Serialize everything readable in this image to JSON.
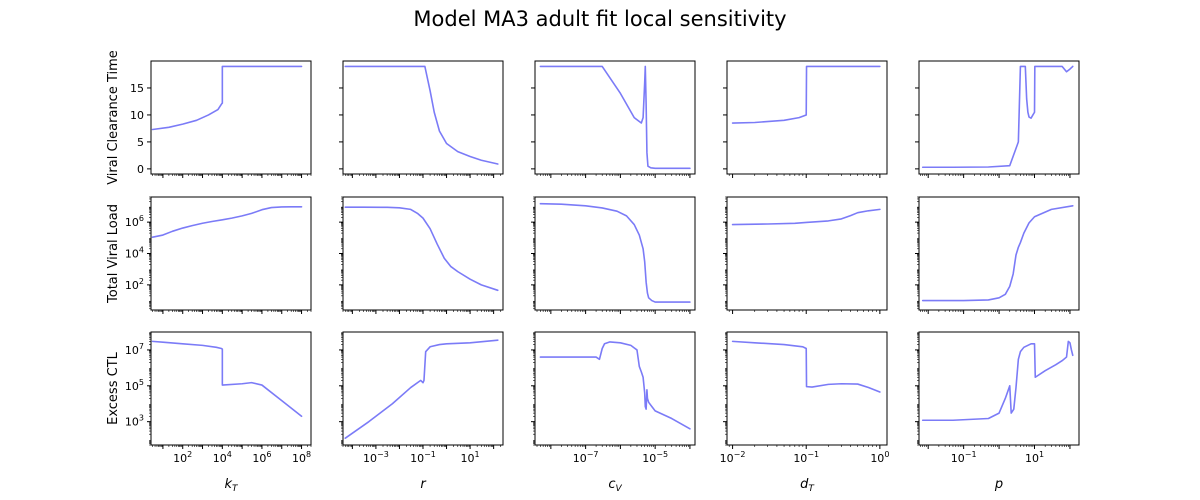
{
  "chart_data": {
    "type": "line",
    "title": "Model MA3 adult fit local sensitivity",
    "line_color": "#7b7bf7",
    "grid": false,
    "row_labels": [
      "Viral Clearance Time",
      "Total Viral Load",
      "Excess CTL"
    ],
    "columns": [
      {
        "xlabel_base": "k",
        "xlabel_sub": "T",
        "xscale": "log",
        "xlim": [
          2.5,
          300000000
        ],
        "xticks": [
          {
            "value": 100,
            "base": "10",
            "exp": "2"
          },
          {
            "value": 10000,
            "base": "10",
            "exp": "4"
          },
          {
            "value": 1000000,
            "base": "10",
            "exp": "6"
          },
          {
            "value": 100000000,
            "base": "10",
            "exp": "8"
          }
        ]
      },
      {
        "xlabel_base": "r",
        "xlabel_sub": "",
        "xscale": "log",
        "xlim": [
          4e-05,
          250
        ],
        "xticks": [
          {
            "value": 0.001,
            "base": "10",
            "exp": "−3"
          },
          {
            "value": 0.1,
            "base": "10",
            "exp": "−1"
          },
          {
            "value": 10,
            "base": "10",
            "exp": "1"
          }
        ]
      },
      {
        "xlabel_base": "c",
        "xlabel_sub": "V",
        "xscale": "log",
        "xlim": [
          3.5e-09,
          0.00014
        ],
        "xticks": [
          {
            "value": 1e-07,
            "base": "10",
            "exp": "−7"
          },
          {
            "value": 1e-05,
            "base": "10",
            "exp": "−5"
          }
        ]
      },
      {
        "xlabel_base": "d",
        "xlabel_sub": "T",
        "xscale": "log",
        "xlim": [
          0.0084,
          1.25
        ],
        "xticks": [
          {
            "value": 0.01,
            "base": "10",
            "exp": "−2"
          },
          {
            "value": 0.1,
            "base": "10",
            "exp": "−1"
          },
          {
            "value": 1,
            "base": "10",
            "exp": "0"
          }
        ]
      },
      {
        "xlabel_base": "p",
        "xlabel_sub": "",
        "xscale": "log",
        "xlim": [
          0.0055,
          180
        ],
        "xticks": [
          {
            "value": 0.1,
            "base": "10",
            "exp": "−1"
          },
          {
            "value": 10,
            "base": "10",
            "exp": "1"
          }
        ]
      }
    ],
    "rows": [
      {
        "ylabel": "Viral Clearance Time",
        "yscale": "linear",
        "ylim": [
          -0.95,
          20.0
        ],
        "yticks": [
          {
            "value": 0,
            "label": "0"
          },
          {
            "value": 5,
            "label": "5"
          },
          {
            "value": 10,
            "label": "10"
          },
          {
            "value": 15,
            "label": "15"
          }
        ]
      },
      {
        "ylabel": "Total Viral Load",
        "yscale": "log",
        "ylim": [
          2.5,
          40000000
        ],
        "yticks": [
          {
            "value": 100,
            "base": "10",
            "exp": "2"
          },
          {
            "value": 10000,
            "base": "10",
            "exp": "4"
          },
          {
            "value": 1000000,
            "base": "10",
            "exp": "6"
          }
        ]
      },
      {
        "ylabel": "Excess CTL",
        "yscale": "log",
        "ylim": [
          50,
          100000000
        ],
        "yticks": [
          {
            "value": 1000,
            "base": "10",
            "exp": "3"
          },
          {
            "value": 100000,
            "base": "10",
            "exp": "5"
          },
          {
            "value": 10000000,
            "base": "10",
            "exp": "7"
          }
        ]
      }
    ],
    "panels": [
      [
        {
          "x": [
            3,
            20,
            100,
            500,
            2000,
            6000,
            9000,
            10000,
            10000,
            100000,
            1000000,
            10000000,
            100000000
          ],
          "y": [
            7.3,
            7.7,
            8.3,
            9.0,
            10.0,
            11.0,
            12.0,
            12.2,
            19.0,
            19.0,
            19.0,
            19.0,
            19.0
          ]
        },
        {
          "x": [
            5e-05,
            0.001,
            0.01,
            0.1,
            0.12,
            0.2,
            0.3,
            0.5,
            1,
            3,
            10,
            30,
            150
          ],
          "y": [
            19.0,
            19.0,
            19.0,
            19.0,
            19.0,
            14.5,
            10.5,
            7.0,
            4.7,
            3.2,
            2.3,
            1.6,
            0.9
          ]
        },
        {
          "x": [
            5e-09,
            1e-07,
            3e-07,
            1e-06,
            2.5e-06,
            4e-06,
            4.5e-06,
            5e-06,
            5.2e-06,
            5.5e-06,
            5.8e-06,
            6.2e-06,
            7.5e-06,
            1e-05,
            3e-05,
            0.0001
          ],
          "y": [
            19.0,
            19.0,
            19.0,
            14.0,
            9.5,
            8.5,
            9.5,
            16.0,
            19.0,
            12.0,
            3.0,
            0.5,
            0.2,
            0.1,
            0.1,
            0.1
          ]
        },
        {
          "x": [
            0.01,
            0.02,
            0.05,
            0.08,
            0.1,
            0.101,
            0.2,
            0.5,
            1
          ],
          "y": [
            8.5,
            8.6,
            9.0,
            9.5,
            10.0,
            19.0,
            19.0,
            19.0,
            19.0
          ]
        },
        {
          "x": [
            0.007,
            0.05,
            0.5,
            2,
            3.5,
            4,
            4.2,
            5.5,
            6,
            6.5,
            7,
            8,
            9,
            10,
            10.2,
            30,
            60,
            80,
            100,
            120
          ],
          "y": [
            0.3,
            0.3,
            0.35,
            0.6,
            5.0,
            19.0,
            19.0,
            19.0,
            13.0,
            10.5,
            9.6,
            9.4,
            10.0,
            10.5,
            19.0,
            19.0,
            19.0,
            18.0,
            18.5,
            19.0
          ]
        }
      ],
      [
        {
          "x": [
            3,
            10,
            30,
            100,
            300,
            1000,
            3000,
            10000,
            30000,
            100000,
            300000,
            1000000,
            3000000,
            10000000,
            30000000,
            100000000
          ],
          "y": [
            110000,
            150000,
            260000,
            420000,
            600000,
            850000,
            1100000,
            1400000,
            1800000,
            2500000,
            3600000,
            6200000,
            8500000,
            9300000,
            9500000,
            9500000
          ]
        },
        {
          "x": [
            5e-05,
            0.0003,
            0.003,
            0.01,
            0.03,
            0.06,
            0.1,
            0.2,
            0.4,
            0.8,
            1.5,
            3,
            10,
            30,
            150
          ],
          "y": [
            9000000,
            9000000,
            8800000,
            8200000,
            6500000,
            3500000,
            1800000,
            380000,
            40000,
            5000,
            1500,
            700,
            230,
            100,
            45
          ]
        },
        {
          "x": [
            5e-09,
            2e-08,
            1e-07,
            3e-07,
            8e-07,
            1.5e-06,
            2.5e-06,
            3.5e-06,
            4.5e-06,
            5e-06,
            5.5e-06,
            6e-06,
            6.5e-06,
            8e-06,
            1e-05,
            3e-05,
            0.0001
          ],
          "y": [
            15000000,
            14000000,
            11000000,
            8000000,
            5000000,
            2500000,
            700000,
            150000,
            20000,
            3000,
            150,
            30,
            15,
            10,
            8,
            8,
            8
          ]
        },
        {
          "x": [
            0.01,
            0.03,
            0.07,
            0.1,
            0.2,
            0.3,
            0.4,
            0.5,
            0.7,
            1
          ],
          "y": [
            700000,
            760000,
            840000,
            950000,
            1200000,
            1600000,
            2600000,
            4000000,
            5300000,
            6500000
          ]
        },
        {
          "x": [
            0.007,
            0.1,
            0.5,
            1,
            1.5,
            2,
            2.5,
            3,
            3.5,
            4,
            5,
            7,
            10,
            30,
            120
          ],
          "y": [
            10,
            10,
            11,
            15,
            25,
            80,
            500,
            8000,
            25000,
            50000,
            200000,
            900000,
            2200000,
            6500000,
            11000000
          ]
        }
      ],
      [
        {
          "x": [
            3,
            10,
            100,
            1000,
            5000,
            9000,
            10000,
            10000,
            100000,
            300000,
            1000000,
            10000000,
            100000000
          ],
          "y": [
            30000000,
            27000000,
            22000000,
            18000000,
            14000000,
            12000000,
            11000000,
            110000,
            130000,
            150000,
            110000,
            15000,
            2000
          ]
        },
        {
          "x": [
            5e-05,
            0.0005,
            0.005,
            0.03,
            0.08,
            0.1,
            0.11,
            0.13,
            0.2,
            0.5,
            1,
            10,
            150
          ],
          "y": [
            120,
            1000,
            10000,
            80000,
            200000,
            150000,
            200000,
            8000000,
            15000000,
            20000000,
            22000000,
            25000000,
            35000000
          ]
        },
        {
          "x": [
            5e-09,
            2e-07,
            2.5e-07,
            3e-07,
            3.5e-07,
            5e-07,
            1e-06,
            2e-06,
            3e-06,
            3.5e-06,
            4e-06,
            4.5e-06,
            5e-06,
            5.2e-06,
            5.5e-06,
            5.8e-06,
            6e-06,
            6.5e-06,
            8e-06,
            1e-05,
            3e-05,
            0.0001
          ],
          "y": [
            4000000,
            4000000,
            3000000,
            12000000,
            22000000,
            28000000,
            25000000,
            18000000,
            10000000,
            1200000,
            600000,
            300000,
            40000,
            7000,
            5000,
            60000,
            20000,
            12000,
            7000,
            4000,
            1500,
            400
          ]
        },
        {
          "x": [
            0.01,
            0.02,
            0.05,
            0.09,
            0.1,
            0.101,
            0.12,
            0.2,
            0.3,
            0.5,
            0.7,
            1
          ],
          "y": [
            30000000,
            25000000,
            20000000,
            15000000,
            12000000,
            90000,
            85000,
            120000,
            130000,
            125000,
            80000,
            45000
          ]
        },
        {
          "x": [
            0.007,
            0.05,
            0.5,
            1,
            1.5,
            2,
            2.2,
            2.6,
            3,
            3.5,
            4,
            5,
            8,
            10,
            10.5,
            20,
            40,
            60,
            80,
            90,
            100,
            110,
            120
          ],
          "y": [
            1200,
            1200,
            1500,
            3000,
            20000,
            100000,
            3000,
            5000,
            80000,
            3000000,
            8000000,
            14000000,
            22000000,
            22000000,
            300000,
            700000,
            1500000,
            2500000,
            4000000,
            30000000,
            25000000,
            10000000,
            5000000
          ]
        }
      ]
    ]
  }
}
